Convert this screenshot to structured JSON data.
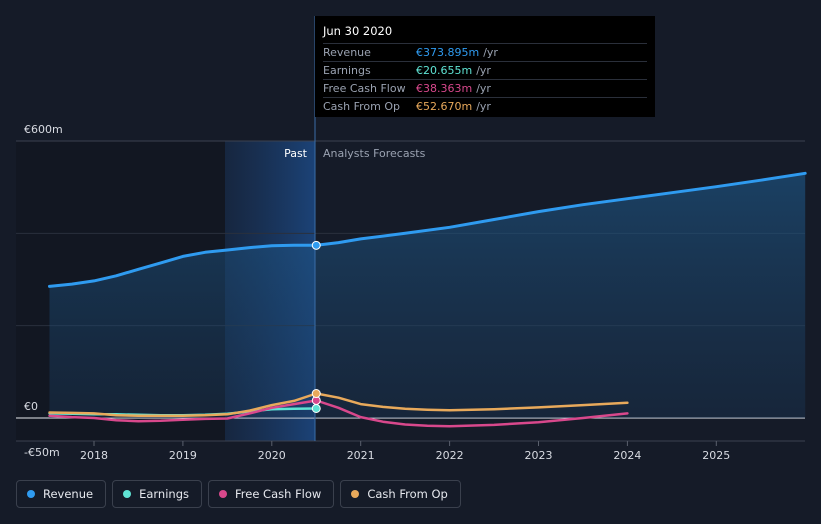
{
  "tooltip": {
    "date": "Jun 30 2020",
    "rows": [
      {
        "label": "Revenue",
        "value": "€373.895m",
        "unit": "/yr",
        "color": "#2f9bf0"
      },
      {
        "label": "Earnings",
        "value": "€20.655m",
        "unit": "/yr",
        "color": "#5fe3d4"
      },
      {
        "label": "Free Cash Flow",
        "value": "€38.363m",
        "unit": "/yr",
        "color": "#d8488c"
      },
      {
        "label": "Cash From Op",
        "value": "€52.670m",
        "unit": "/yr",
        "color": "#e8a95b"
      }
    ]
  },
  "legend": [
    {
      "label": "Revenue",
      "color": "#2f9bf0"
    },
    {
      "label": "Earnings",
      "color": "#5fe3d4"
    },
    {
      "label": "Free Cash Flow",
      "color": "#d8488c"
    },
    {
      "label": "Cash From Op",
      "color": "#e8a95b"
    }
  ],
  "chart_data": {
    "type": "line",
    "title": "",
    "xlabel": "",
    "ylabel": "",
    "currency": "€",
    "past_label": "Past",
    "forecast_label": "Analysts Forecasts",
    "divider_x": 2020.5,
    "xlim": [
      2017.2,
      2026.0
    ],
    "ylim": [
      -50,
      600
    ],
    "y_ticks": [
      {
        "value": 600,
        "label": "€600m"
      },
      {
        "value": 0,
        "label": "€0"
      },
      {
        "value": -50,
        "label": "-€50m"
      }
    ],
    "x_ticks": [
      {
        "value": 2018,
        "label": "2018"
      },
      {
        "value": 2019,
        "label": "2019"
      },
      {
        "value": 2020,
        "label": "2020"
      },
      {
        "value": 2021,
        "label": "2021"
      },
      {
        "value": 2022,
        "label": "2022"
      },
      {
        "value": 2023,
        "label": "2023"
      },
      {
        "value": 2024,
        "label": "2024"
      },
      {
        "value": 2025,
        "label": "2025"
      }
    ],
    "series": [
      {
        "name": "Revenue",
        "color": "#2f9bf0",
        "fill": true,
        "x": [
          2017.5,
          2017.75,
          2018.0,
          2018.25,
          2018.5,
          2018.75,
          2019.0,
          2019.25,
          2019.5,
          2019.75,
          2020.0,
          2020.25,
          2020.5,
          2020.75,
          2021.0,
          2021.5,
          2022.0,
          2022.5,
          2023.0,
          2023.5,
          2024.0,
          2024.5,
          2025.0,
          2025.5,
          2026.0
        ],
        "values": [
          285,
          290,
          297,
          308,
          322,
          336,
          350,
          359,
          364,
          369,
          373,
          374,
          374,
          380,
          388,
          400,
          413,
          430,
          447,
          462,
          475,
          488,
          501,
          515,
          530
        ]
      },
      {
        "name": "Earnings",
        "color": "#5fe3d4",
        "fill": false,
        "x": [
          2017.5,
          2017.75,
          2018.0,
          2018.25,
          2018.5,
          2018.75,
          2019.0,
          2019.25,
          2019.5,
          2019.75,
          2020.0,
          2020.25,
          2020.5
        ],
        "values": [
          10,
          9,
          8,
          8,
          7,
          6,
          6,
          7,
          9,
          14,
          19,
          20,
          20.655
        ]
      },
      {
        "name": "Free Cash Flow",
        "color": "#d8488c",
        "fill": false,
        "x": [
          2017.5,
          2017.75,
          2018.0,
          2018.25,
          2018.5,
          2018.75,
          2019.0,
          2019.25,
          2019.5,
          2019.75,
          2020.0,
          2020.25,
          2020.5,
          2020.75,
          2021.0,
          2021.25,
          2021.5,
          2021.75,
          2022.0,
          2022.5,
          2023.0,
          2023.5,
          2024.0
        ],
        "values": [
          5,
          2,
          0,
          -5,
          -7,
          -6,
          -4,
          -2,
          -1,
          10,
          22,
          30,
          38,
          22,
          2,
          -8,
          -14,
          -17,
          -18,
          -15,
          -9,
          0,
          10
        ]
      },
      {
        "name": "Cash From Op",
        "color": "#e8a95b",
        "fill": false,
        "x": [
          2017.5,
          2017.75,
          2018.0,
          2018.25,
          2018.5,
          2018.75,
          2019.0,
          2019.25,
          2019.5,
          2019.75,
          2020.0,
          2020.25,
          2020.5,
          2020.75,
          2021.0,
          2021.25,
          2021.5,
          2021.75,
          2022.0,
          2022.5,
          2023.0,
          2023.5,
          2024.0
        ],
        "values": [
          12,
          11,
          10,
          6,
          5,
          5,
          5,
          6,
          8,
          16,
          28,
          37,
          53,
          44,
          30,
          24,
          20,
          18,
          17,
          19,
          23,
          28,
          33
        ]
      }
    ]
  }
}
